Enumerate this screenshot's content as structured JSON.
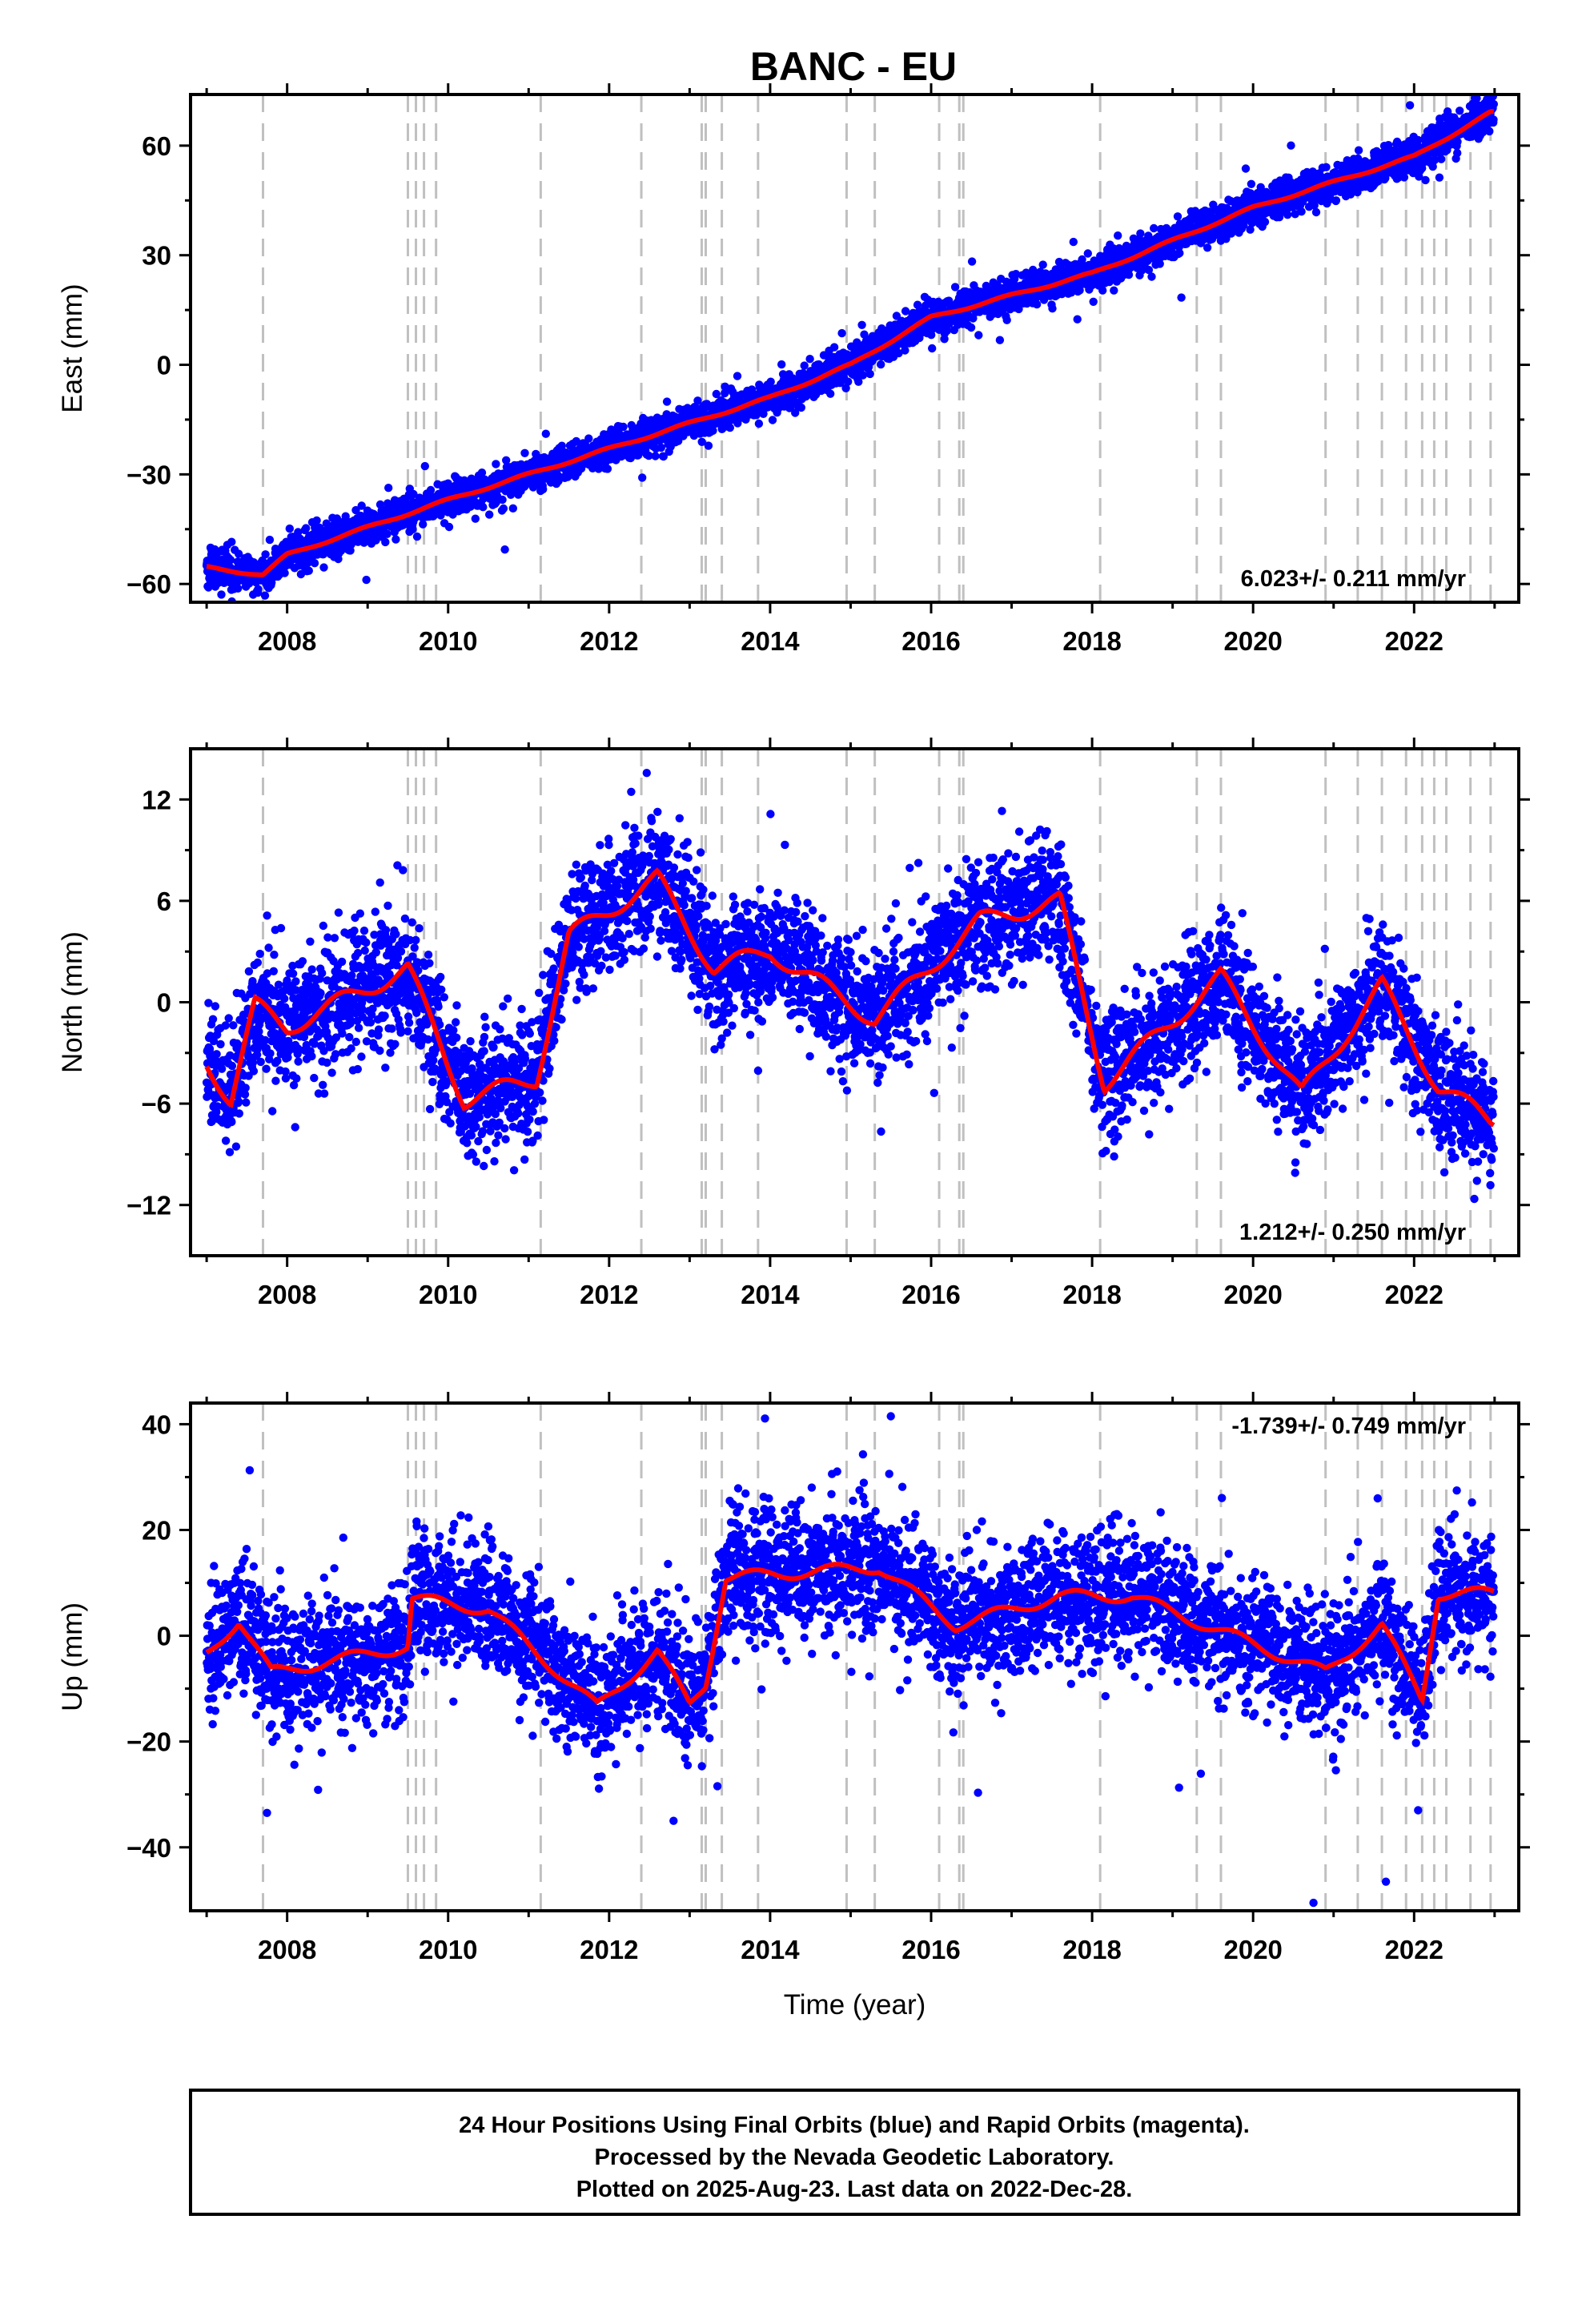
{
  "title": "BANC - EU",
  "footer": {
    "line1": "24 Hour Positions Using Final Orbits (blue) and Rapid Orbits (magenta).",
    "line2": "Processed by the Nevada Geodetic Laboratory.",
    "line3": "Plotted on 2025-Aug-23. Last data on 2022-Dec-28."
  },
  "colors": {
    "points": "#0000ff",
    "model": "#ff0000",
    "event_lines": "#c0c0c0",
    "frame": "#000000"
  },
  "chart_data": [
    {
      "type": "scatter",
      "ylabel": "East (mm)",
      "xlabel": "",
      "xlim": [
        2006.8,
        2023.3
      ],
      "ylim": [
        -65,
        74
      ],
      "yticks": [
        -60,
        -30,
        0,
        30,
        60
      ],
      "ytick_labels": [
        "−60",
        "−30",
        "0",
        "30",
        "60"
      ],
      "xticks": [
        2008,
        2010,
        2012,
        2014,
        2016,
        2018,
        2020,
        2022
      ],
      "xtick_labels": [
        "2008",
        "2010",
        "2012",
        "2014",
        "2016",
        "2018",
        "2020",
        "2022"
      ],
      "rate_label": "6.023+/- 0.211 mm/yr",
      "rate_position": "bottom-right",
      "event_lines": [
        2007.7,
        2009.5,
        2009.6,
        2009.7,
        2009.85,
        2011.15,
        2012.4,
        2013.15,
        2013.2,
        2013.4,
        2013.85,
        2014.95,
        2015.3,
        2016.1,
        2016.35,
        2016.4,
        2018.1,
        2019.3,
        2019.6,
        2020.9,
        2021.3,
        2021.6,
        2021.9,
        2022.1,
        2022.25,
        2022.4,
        2022.7,
        2022.95
      ],
      "model": {
        "slope": 6.023,
        "intercept_year": 2015.0,
        "intercept_value": 0,
        "seasonal_amp": 1.8,
        "seasonal_phase": 0.3,
        "offsets": [
          [
            2011.15,
            1.0
          ],
          [
            2015.3,
            3.0
          ],
          [
            2019.3,
            -1.5
          ],
          [
            2022.1,
            -2.0
          ]
        ],
        "key_points": [
          [
            2007.0,
            -55.5
          ],
          [
            2007.7,
            -57.5
          ],
          [
            2008.0,
            -52
          ],
          [
            2010.0,
            -37
          ],
          [
            2012.0,
            -23
          ],
          [
            2014.0,
            -9
          ],
          [
            2015.0,
            0
          ],
          [
            2016.0,
            13
          ],
          [
            2018.0,
            25
          ],
          [
            2020.0,
            43
          ],
          [
            2022.0,
            57
          ],
          [
            2022.95,
            69
          ]
        ]
      },
      "noise_sd": 2.4,
      "point_count": 4900
    },
    {
      "type": "scatter",
      "ylabel": "North (mm)",
      "xlabel": "",
      "xlim": [
        2006.8,
        2023.3
      ],
      "ylim": [
        -15,
        15
      ],
      "yticks": [
        -12,
        -6,
        0,
        6,
        12
      ],
      "ytick_labels": [
        "−12",
        "−6",
        "0",
        "6",
        "12"
      ],
      "xticks": [
        2008,
        2010,
        2012,
        2014,
        2016,
        2018,
        2020,
        2022
      ],
      "xtick_labels": [
        "2008",
        "2010",
        "2012",
        "2014",
        "2016",
        "2018",
        "2020",
        "2022"
      ],
      "rate_label": "1.212+/- 0.250 mm/yr",
      "rate_position": "bottom-right",
      "event_lines": [
        2007.7,
        2009.5,
        2009.6,
        2009.7,
        2009.85,
        2011.15,
        2012.4,
        2013.15,
        2013.2,
        2013.4,
        2013.85,
        2014.95,
        2015.3,
        2016.1,
        2016.35,
        2016.4,
        2018.1,
        2019.3,
        2019.6,
        2020.9,
        2021.3,
        2021.6,
        2021.9,
        2022.1,
        2022.25,
        2022.4,
        2022.7,
        2022.95
      ],
      "model": {
        "slope": 1.212,
        "intercept_year": 2015.0,
        "intercept_value": 0,
        "seasonal_amp": 2.6,
        "seasonal_phase": 0.6,
        "offsets": [
          [
            2011.15,
            5.5
          ],
          [
            2012.5,
            4.0
          ],
          [
            2018.1,
            -8.5
          ],
          [
            2022.7,
            -4.0
          ]
        ],
        "key_points": [
          [
            2007.0,
            -3.5
          ],
          [
            2007.3,
            -5.8
          ],
          [
            2007.6,
            -0.2
          ],
          [
            2008.0,
            -1.5
          ],
          [
            2009.5,
            2.0
          ],
          [
            2010.2,
            -5.8
          ],
          [
            2011.1,
            -4.5
          ],
          [
            2011.5,
            3.9
          ],
          [
            2012.6,
            7.3
          ],
          [
            2013.3,
            2.0
          ],
          [
            2014.0,
            3.0
          ],
          [
            2015.3,
            -1.0
          ],
          [
            2016.6,
            4.8
          ],
          [
            2017.6,
            6.0
          ],
          [
            2018.15,
            -4.8
          ],
          [
            2019.6,
            1.5
          ],
          [
            2020.6,
            -5.5
          ],
          [
            2021.6,
            1.0
          ],
          [
            2022.3,
            -5.0
          ],
          [
            2022.95,
            -7.0
          ]
        ]
      },
      "noise_sd": 1.8,
      "point_count": 4900
    },
    {
      "type": "scatter",
      "ylabel": "Up (mm)",
      "xlabel": "Time (year)",
      "xlim": [
        2006.8,
        2023.3
      ],
      "ylim": [
        -52,
        44
      ],
      "yticks": [
        -40,
        -20,
        0,
        20,
        40
      ],
      "ytick_labels": [
        "−40",
        "−20",
        "0",
        "20",
        "40"
      ],
      "xticks": [
        2008,
        2010,
        2012,
        2014,
        2016,
        2018,
        2020,
        2022
      ],
      "xtick_labels": [
        "2008",
        "2010",
        "2012",
        "2014",
        "2016",
        "2018",
        "2020",
        "2022"
      ],
      "rate_label": "-1.739+/- 0.749 mm/yr",
      "rate_position": "top-right",
      "event_lines": [
        2007.7,
        2009.5,
        2009.6,
        2009.7,
        2009.85,
        2011.15,
        2012.4,
        2013.15,
        2013.2,
        2013.4,
        2013.85,
        2014.95,
        2015.3,
        2016.1,
        2016.35,
        2016.4,
        2018.1,
        2019.3,
        2019.6,
        2020.9,
        2021.3,
        2021.6,
        2021.9,
        2022.1,
        2022.25,
        2022.4,
        2022.7,
        2022.95
      ],
      "model": {
        "slope": -1.739,
        "intercept_year": 2015.0,
        "intercept_value": 0,
        "seasonal_amp": 5.5,
        "seasonal_phase": 0.45,
        "offsets": [
          [
            2009.5,
            6.0
          ],
          [
            2013.2,
            14.0
          ],
          [
            2016.1,
            -6.0
          ],
          [
            2022.25,
            12.0
          ]
        ],
        "key_points": [
          [
            2007.0,
            -3.5
          ],
          [
            2007.4,
            3.0
          ],
          [
            2007.8,
            -7.0
          ],
          [
            2009.5,
            -2.0
          ],
          [
            2009.55,
            7.0
          ],
          [
            2010.5,
            5.0
          ],
          [
            2011.85,
            -13.5
          ],
          [
            2012.6,
            -3.0
          ],
          [
            2013.0,
            -13.0
          ],
          [
            2013.2,
            -9.0
          ],
          [
            2013.45,
            11.0
          ],
          [
            2015.35,
            13.0
          ],
          [
            2016.3,
            2.0
          ],
          [
            2017.6,
            7.5
          ],
          [
            2018.5,
            7.5
          ],
          [
            2020.9,
            -7.0
          ],
          [
            2021.6,
            2.0
          ],
          [
            2022.1,
            -12.0
          ],
          [
            2022.3,
            8.0
          ],
          [
            2022.95,
            8.0
          ]
        ]
      },
      "noise_sd": 6.0,
      "point_count": 4900,
      "outliers": [
        [
          2020.75,
          -50.5
        ],
        [
          2021.65,
          -46.5
        ],
        [
          2015.5,
          41.5
        ],
        [
          2007.75,
          -33.5
        ],
        [
          2022.05,
          -33.0
        ],
        [
          2012.8,
          -35.0
        ]
      ]
    }
  ]
}
